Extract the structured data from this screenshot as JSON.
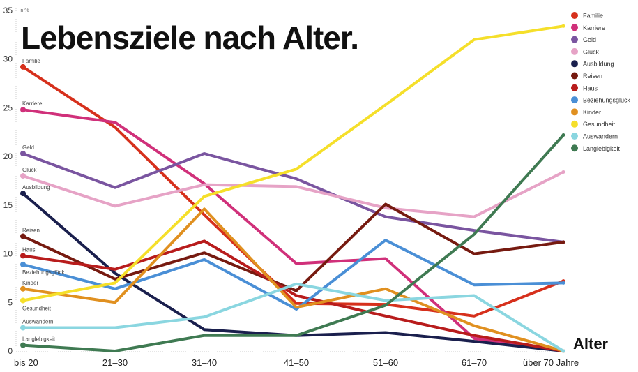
{
  "chart_data": {
    "type": "line",
    "title": "Lebensziele nach Alter.",
    "ylabel": "in %",
    "xlabel": "Alter",
    "ylim": [
      0,
      35
    ],
    "yticks": [
      0,
      5,
      10,
      15,
      20,
      25,
      30,
      35
    ],
    "grid": false,
    "legend": "top-right",
    "categories": [
      "bis 20",
      "21–30",
      "31–40",
      "41–50",
      "51–60",
      "61–70",
      "über 70 Jahre"
    ],
    "series": [
      {
        "name": "Familie",
        "color": "#d6301c",
        "values": [
          29.2,
          23.0,
          14.0,
          4.9,
          4.8,
          3.6,
          7.2
        ]
      },
      {
        "name": "Karriere",
        "color": "#d0307a",
        "values": [
          24.8,
          23.5,
          17.2,
          9.0,
          9.5,
          1.3,
          0
        ]
      },
      {
        "name": "Geld",
        "color": "#7a55a0",
        "values": [
          20.3,
          16.8,
          20.3,
          17.7,
          13.8,
          12.4,
          11.2
        ]
      },
      {
        "name": "Glück",
        "color": "#e6a3c6",
        "values": [
          18.0,
          14.9,
          17.1,
          16.9,
          14.7,
          13.8,
          18.4
        ]
      },
      {
        "name": "Ausbildung",
        "color": "#1a1f4d",
        "values": [
          16.2,
          8.0,
          2.2,
          1.6,
          1.9,
          1.0,
          0
        ]
      },
      {
        "name": "Reisen",
        "color": "#761a10",
        "values": [
          11.8,
          7.4,
          10.1,
          6.2,
          15.1,
          10.0,
          11.2
        ]
      },
      {
        "name": "Haus",
        "color": "#b81c1c",
        "values": [
          9.8,
          8.4,
          11.3,
          5.7,
          3.6,
          1.6,
          0
        ]
      },
      {
        "name": "Beziehungsglück",
        "color": "#4a8fd6",
        "values": [
          8.9,
          6.4,
          9.4,
          4.3,
          11.4,
          6.8,
          7.0
        ]
      },
      {
        "name": "Kinder",
        "color": "#e09020",
        "values": [
          6.4,
          5.0,
          14.6,
          4.5,
          6.4,
          2.6,
          0
        ]
      },
      {
        "name": "Gesundheit",
        "color": "#f5df2a",
        "values": [
          5.2,
          7.0,
          15.9,
          18.7,
          25.3,
          32.0,
          33.4
        ]
      },
      {
        "name": "Auswandern",
        "color": "#8ad6e0",
        "values": [
          2.4,
          2.4,
          3.5,
          6.9,
          5.2,
          5.7,
          0
        ]
      },
      {
        "name": "Langlebigkeit",
        "color": "#3f7a52",
        "values": [
          0.6,
          0,
          1.6,
          1.6,
          4.7,
          12.0,
          22.2
        ]
      }
    ]
  }
}
